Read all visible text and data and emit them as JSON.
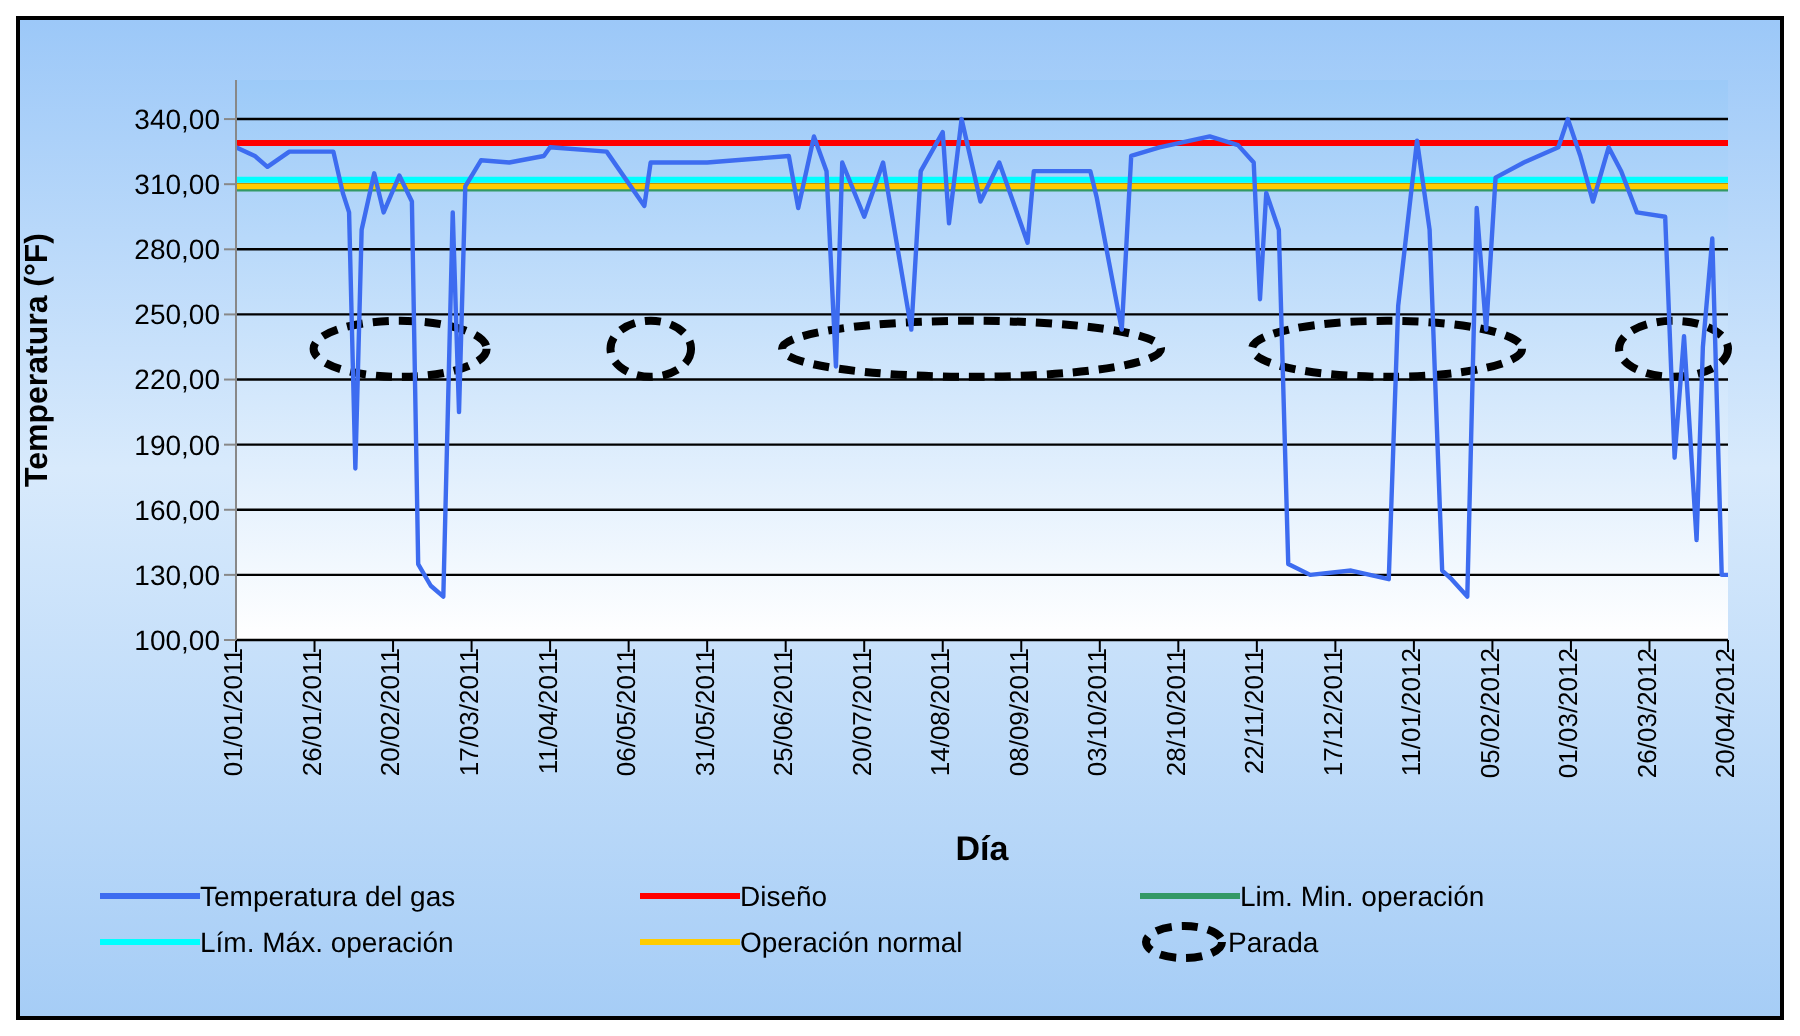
{
  "chart_data": {
    "type": "line",
    "xlabel": "Día",
    "ylabel": "Temperatura (°F)",
    "xlim": [
      "2011-01-01",
      "2012-04-20"
    ],
    "xticks": [
      {
        "value": "2011-01-01",
        "label": "01/01/2011"
      },
      {
        "value": "2011-01-26",
        "label": "26/01/2011"
      },
      {
        "value": "2011-02-20",
        "label": "20/02/2011"
      },
      {
        "value": "2011-03-17",
        "label": "17/03/2011"
      },
      {
        "value": "2011-04-11",
        "label": "11/04/2011"
      },
      {
        "value": "2011-05-06",
        "label": "06/05/2011"
      },
      {
        "value": "2011-05-31",
        "label": "31/05/2011"
      },
      {
        "value": "2011-06-25",
        "label": "25/06/2011"
      },
      {
        "value": "2011-07-20",
        "label": "20/07/2011"
      },
      {
        "value": "2011-08-14",
        "label": "14/08/2011"
      },
      {
        "value": "2011-09-08",
        "label": "08/09/2011"
      },
      {
        "value": "2011-10-03",
        "label": "03/10/2011"
      },
      {
        "value": "2011-10-28",
        "label": "28/10/2011"
      },
      {
        "value": "2011-11-22",
        "label": "22/11/2011"
      },
      {
        "value": "2011-12-17",
        "label": "17/12/2011"
      },
      {
        "value": "2012-01-11",
        "label": "11/01/2012"
      },
      {
        "value": "2012-02-05",
        "label": "05/02/2012"
      },
      {
        "value": "2012-03-01",
        "label": "01/03/2012"
      },
      {
        "value": "2012-03-26",
        "label": "26/03/2012"
      },
      {
        "value": "2012-04-20",
        "label": "20/04/2012"
      }
    ],
    "ylim": [
      100,
      358
    ],
    "yticks": [
      {
        "value": 100,
        "label": "100,00"
      },
      {
        "value": 130,
        "label": "130,00"
      },
      {
        "value": 160,
        "label": "160,00"
      },
      {
        "value": 190,
        "label": "190,00"
      },
      {
        "value": 220,
        "label": "220,00"
      },
      {
        "value": 250,
        "label": "250,00"
      },
      {
        "value": 280,
        "label": "280,00"
      },
      {
        "value": 310,
        "label": "310,00"
      },
      {
        "value": 340,
        "label": "340,00"
      }
    ],
    "grid": "y",
    "legend": "bottom",
    "marker": "none",
    "series": [
      {
        "name": "Temperatura del gas",
        "color": "#3d6cf0",
        "x": [
          "2011-01-01",
          "2011-01-07",
          "2011-01-11",
          "2011-01-18",
          "2011-02-01",
          "2011-02-04",
          "2011-02-06",
          "2011-02-08",
          "2011-02-10",
          "2011-02-14",
          "2011-02-17",
          "2011-02-22",
          "2011-02-26",
          "2011-02-28",
          "2011-03-04",
          "2011-03-08",
          "2011-03-11",
          "2011-03-13",
          "2011-03-15",
          "2011-03-20",
          "2011-03-29",
          "2011-04-09",
          "2011-04-11",
          "2011-04-29",
          "2011-05-11",
          "2011-05-13",
          "2011-05-31",
          "2011-06-26",
          "2011-06-29",
          "2011-07-04",
          "2011-07-08",
          "2011-07-11",
          "2011-07-13",
          "2011-07-20",
          "2011-07-26",
          "2011-08-04",
          "2011-08-07",
          "2011-08-14",
          "2011-08-16",
          "2011-08-20",
          "2011-08-26",
          "2011-09-01",
          "2011-09-10",
          "2011-09-12",
          "2011-09-30",
          "2011-10-02",
          "2011-10-10",
          "2011-10-13",
          "2011-10-22",
          "2011-11-07",
          "2011-11-16",
          "2011-11-21",
          "2011-11-23",
          "2011-11-25",
          "2011-11-29",
          "2011-12-02",
          "2011-12-09",
          "2011-12-22",
          "2012-01-03",
          "2012-01-06",
          "2012-01-12",
          "2012-01-16",
          "2012-01-20",
          "2012-01-23",
          "2012-01-28",
          "2012-01-31",
          "2012-02-03",
          "2012-02-06",
          "2012-02-15",
          "2012-02-26",
          "2012-02-29",
          "2012-03-04",
          "2012-03-08",
          "2012-03-13",
          "2012-03-17",
          "2012-03-22",
          "2012-03-31",
          "2012-04-03",
          "2012-04-06",
          "2012-04-10",
          "2012-04-12",
          "2012-04-15",
          "2012-04-18",
          "2012-04-20"
        ],
        "values": [
          327,
          323,
          318,
          325,
          325,
          306,
          297,
          179,
          289,
          315,
          297,
          314,
          302,
          135,
          125,
          120,
          297,
          205,
          309,
          321,
          320,
          323,
          327,
          325,
          300,
          320,
          320,
          323,
          299,
          332,
          316,
          226,
          320,
          295,
          320,
          243,
          316,
          334,
          292,
          340,
          302,
          320,
          283,
          316,
          316,
          304,
          243,
          323,
          327,
          332,
          328,
          320,
          257,
          306,
          289,
          135,
          130,
          132,
          128,
          254,
          330,
          289,
          132,
          128,
          120,
          299,
          243,
          313,
          320,
          327,
          340,
          323,
          302,
          327,
          316,
          297,
          295,
          184,
          240,
          146,
          235,
          285,
          130,
          130
        ]
      },
      {
        "name": "Diseño",
        "color": "#ff0000",
        "x": [
          "2011-01-01",
          "2012-04-20"
        ],
        "values": [
          329,
          329
        ]
      },
      {
        "name": "Lim. Min. operación",
        "color": "#339966",
        "x": [
          "2011-01-01",
          "2012-04-20"
        ],
        "values": [
          308,
          308
        ]
      },
      {
        "name": "Lím. Máx. operación",
        "color": "#00ffff",
        "x": [
          "2011-01-01",
          "2012-04-20"
        ],
        "values": [
          312,
          312
        ]
      },
      {
        "name": "Operación normal",
        "color": "#ffcc00",
        "x": [
          "2011-01-01",
          "2012-04-20"
        ],
        "values": [
          309,
          309
        ]
      }
    ],
    "annotations": [
      "Parada"
    ]
  }
}
